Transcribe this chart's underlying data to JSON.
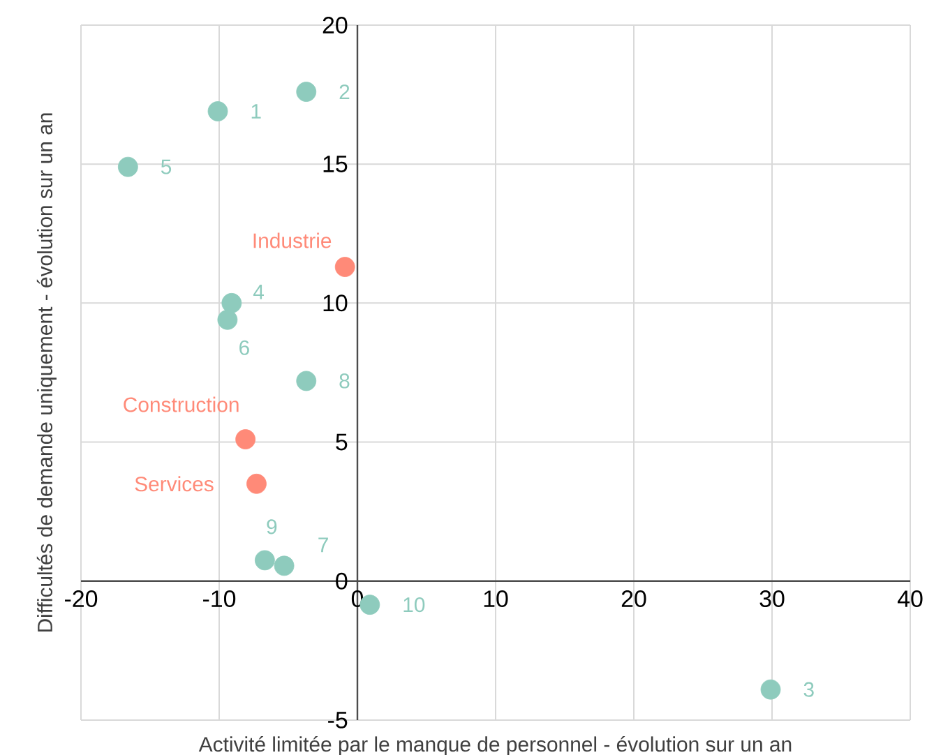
{
  "chart_data": {
    "type": "scatter",
    "xlabel": "Activité limitée par le manque de personnel - évolution sur un an",
    "ylabel": "Difficultés de demande uniquement - évolution sur un an",
    "xlim": [
      -20,
      40
    ],
    "ylim": [
      -5,
      20
    ],
    "xticks": [
      -20,
      -10,
      0,
      10,
      20,
      30,
      40
    ],
    "yticks": [
      -5,
      0,
      5,
      10,
      15,
      20
    ],
    "grid": true,
    "marker": "circle",
    "series": [
      {
        "name": "1",
        "color": "#8ecbbd",
        "x": [
          -10.1
        ],
        "values": [
          16.9
        ]
      },
      {
        "name": "2",
        "color": "#8ecbbd",
        "x": [
          -3.7
        ],
        "values": [
          17.6
        ]
      },
      {
        "name": "3",
        "color": "#8ecbbd",
        "x": [
          29.9
        ],
        "values": [
          -3.9
        ]
      },
      {
        "name": "4",
        "color": "#8ecbbd",
        "x": [
          -9.1
        ],
        "values": [
          10.0
        ]
      },
      {
        "name": "5",
        "color": "#8ecbbd",
        "x": [
          -16.6
        ],
        "values": [
          14.9
        ]
      },
      {
        "name": "6",
        "color": "#8ecbbd",
        "x": [
          -9.4
        ],
        "values": [
          9.4
        ]
      },
      {
        "name": "7",
        "color": "#8ecbbd",
        "x": [
          -5.3
        ],
        "values": [
          0.55
        ]
      },
      {
        "name": "8",
        "color": "#8ecbbd",
        "x": [
          -3.7
        ],
        "values": [
          7.2
        ]
      },
      {
        "name": "9",
        "color": "#8ecbbd",
        "x": [
          -6.7
        ],
        "values": [
          0.75
        ]
      },
      {
        "name": "10",
        "color": "#8ecbbd",
        "x": [
          0.9
        ],
        "values": [
          -0.85
        ]
      },
      {
        "name": "Industrie",
        "color": "#ff8a78",
        "x": [
          -0.9
        ],
        "values": [
          11.3
        ]
      },
      {
        "name": "Construction",
        "color": "#ff8a78",
        "x": [
          -8.1
        ],
        "values": [
          5.1
        ]
      },
      {
        "name": "Services",
        "color": "#ff8a78",
        "x": [
          -7.3
        ],
        "values": [
          3.5
        ]
      }
    ]
  }
}
